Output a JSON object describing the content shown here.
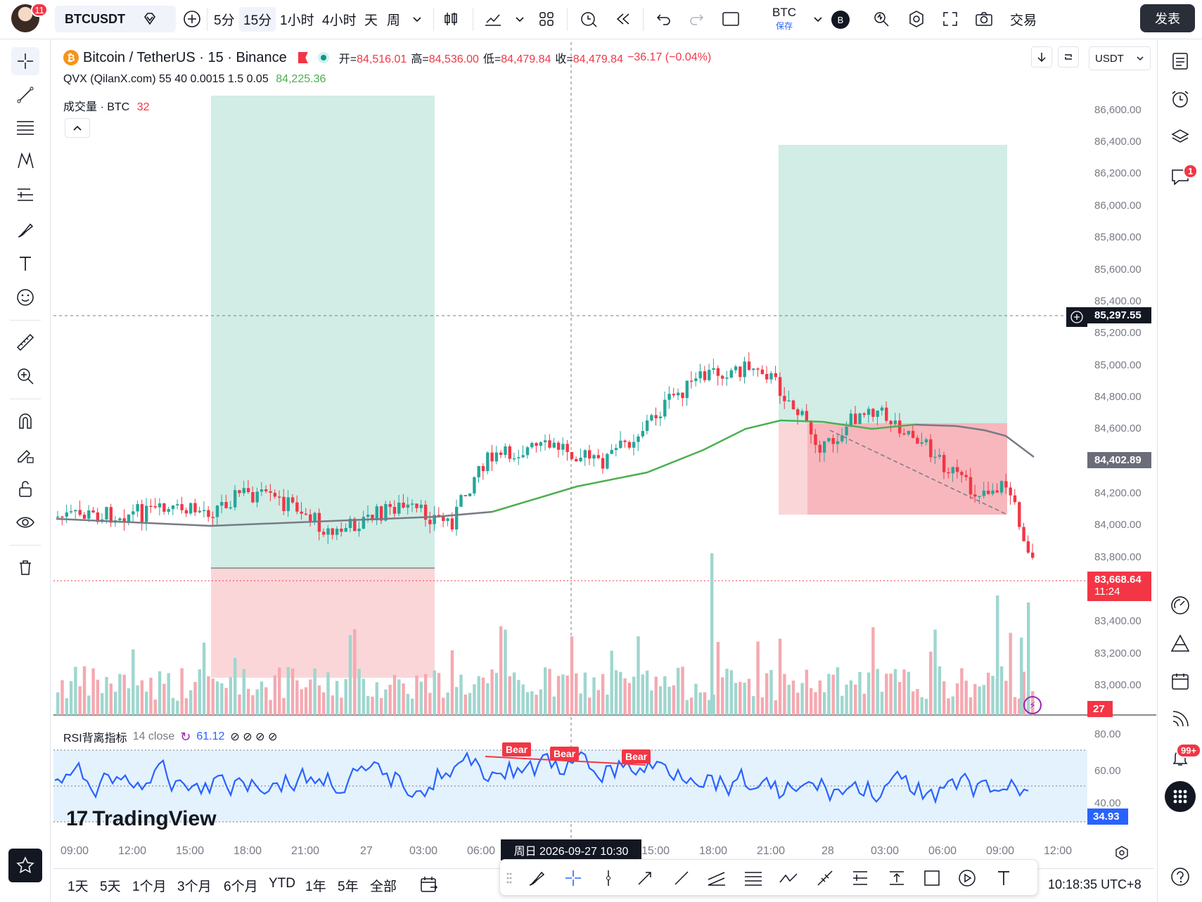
{
  "topbar": {
    "avatar_badge": "11",
    "symbol": "BTCUSDT",
    "intervals": [
      "5分",
      "15分",
      "1小时",
      "4小时",
      "天",
      "周"
    ],
    "active_interval": "15分",
    "currency_label": "BTC",
    "currency_sub": "保存",
    "account_initial": "B",
    "trade_label": "交易",
    "publish_label": "发表"
  },
  "legend": {
    "title": "Bitcoin / TetherUS · 15 · Binance",
    "open_label": "开=",
    "open": "84,516.01",
    "high_label": "高=",
    "high": "84,536.00",
    "low_label": "低=",
    "low": "84,479.84",
    "close_label": "收=",
    "close": "84,479.84",
    "change": "−36.17 (−0.04%)",
    "indicator": "QVX (QilanX.com) 55 40 0.0015 1.5 0.05",
    "indicator_value": "84,225.36",
    "volume_label": "成交量 · BTC",
    "volume_value": "32",
    "currency_select": "USDT"
  },
  "price_axis": {
    "labels": [
      "86,600.00",
      "86,400.00",
      "86,200.00",
      "86,000.00",
      "85,800.00",
      "85,600.00",
      "85,400.00",
      "85,200.00",
      "85,000.00",
      "84,800.00",
      "84,600.00",
      "84,200.00",
      "84,000.00",
      "83,800.00",
      "83,400.00",
      "83,200.00",
      "83,000.00"
    ],
    "crosshair_price": "85,297.55",
    "ma_price": "84,402.89",
    "last_price": "83,668.64",
    "countdown": "11:24",
    "volume_tag": "27"
  },
  "rsi": {
    "label": "RSI背离指标",
    "params": "14 close",
    "value": "61.12",
    "axis": [
      "80.00",
      "60.00",
      "40.00"
    ],
    "last": "34.93",
    "bear_labels": [
      "Bear",
      "Bear",
      "Bear"
    ]
  },
  "time_axis": {
    "labels": [
      "09:00",
      "12:00",
      "15:00",
      "18:00",
      "21:00",
      "27",
      "03:00",
      "06:00",
      "15:00",
      "18:00",
      "21:00",
      "28",
      "03:00",
      "06:00",
      "09:00",
      "12:00"
    ],
    "crosshair_time": "周日 2026-09-27   10:30"
  },
  "bottom": {
    "ranges": [
      "1天",
      "5天",
      "1个月",
      "3个月",
      "6个月",
      "YTD",
      "1年",
      "5年",
      "全部"
    ],
    "clock": "10:18:35 UTC+8"
  },
  "branding": {
    "logo_text": "TradingView"
  },
  "right_badges": {
    "chat": "1",
    "alerts": "99+"
  },
  "colors": {
    "up": "#26a69a",
    "down": "#f23645",
    "ma": "#4caf50",
    "rsi": "#2962ff",
    "accent": "#2962ff"
  }
}
